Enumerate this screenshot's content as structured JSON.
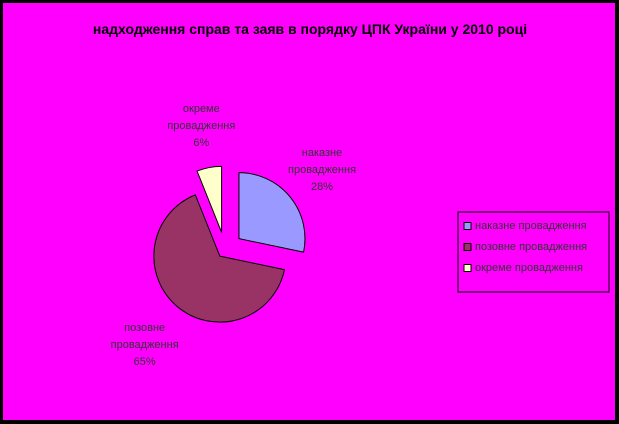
{
  "chart_data": {
    "type": "pie",
    "title": "надходження справ та заяв в порядку ЦПК України у 2010 році",
    "categories": [
      "наказне провадження",
      "позовне провадження",
      "окреме провадження"
    ],
    "values": [
      28,
      65,
      6
    ],
    "value_labels": [
      "28%",
      "65%",
      "6%"
    ],
    "colors": [
      "#9999ff",
      "#993366",
      "#ffffcc"
    ],
    "legend": "right"
  }
}
